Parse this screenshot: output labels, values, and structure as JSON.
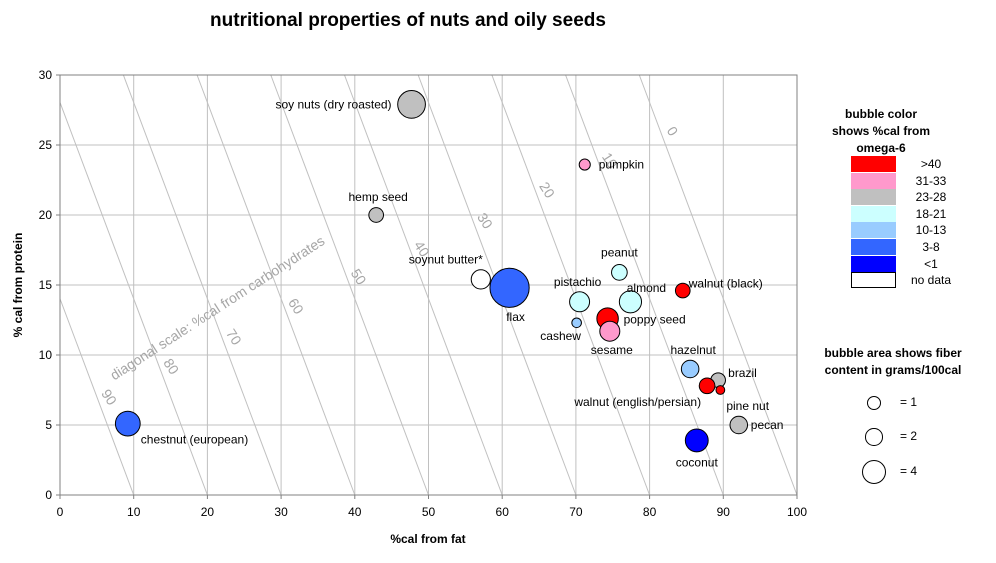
{
  "chart_data": {
    "type": "scatter",
    "title": "nutritional properties of nuts and oily seeds",
    "xlabel": "%cal from fat",
    "ylabel": "% cal from protein",
    "xlim": [
      0,
      100
    ],
    "ylim": [
      0,
      30
    ],
    "xticks": [
      "0",
      "10",
      "20",
      "30",
      "40",
      "50",
      "60",
      "70",
      "80",
      "90",
      "100"
    ],
    "yticks": [
      "0",
      "5",
      "10",
      "15",
      "20",
      "25",
      "30"
    ],
    "grid": true,
    "diagonal_scale": {
      "label": "diagonal scale: %cal from carbohydrates",
      "values": [
        "0",
        "10",
        "20",
        "30",
        "40",
        "50",
        "60",
        "70",
        "80",
        "90"
      ]
    },
    "points": [
      {
        "name": "soy nuts (dry roasted)",
        "x": 47.7,
        "y": 27.9,
        "fiber": 5.0,
        "color": "#c0c0c0"
      },
      {
        "name": "pumpkin",
        "x": 71.2,
        "y": 23.6,
        "fiber": 0.8,
        "color": "#ff99cc"
      },
      {
        "name": "hemp seed",
        "x": 42.9,
        "y": 20.0,
        "fiber": 1.4,
        "color": "#c0c0c0"
      },
      {
        "name": "soynut butter*",
        "x": 57.1,
        "y": 15.4,
        "fiber": 2.4,
        "color": "#ffffff"
      },
      {
        "name": "flax",
        "x": 61.0,
        "y": 14.8,
        "fiber": 10.0,
        "color": "#3366ff"
      },
      {
        "name": "peanut",
        "x": 75.9,
        "y": 15.9,
        "fiber": 1.6,
        "color": "#ccffff"
      },
      {
        "name": "pistachio",
        "x": 70.5,
        "y": 13.8,
        "fiber": 2.6,
        "color": "#ccffff"
      },
      {
        "name": "almond",
        "x": 77.4,
        "y": 13.8,
        "fiber": 3.2,
        "color": "#ccffff"
      },
      {
        "name": "walnut (black)",
        "x": 84.5,
        "y": 14.6,
        "fiber": 1.4,
        "color": "#ff0000"
      },
      {
        "name": "poppy seed",
        "x": 74.3,
        "y": 12.6,
        "fiber": 3.0,
        "color": "#ff0000"
      },
      {
        "name": "cashew",
        "x": 70.1,
        "y": 12.3,
        "fiber": 0.6,
        "color": "#99ccff"
      },
      {
        "name": "sesame",
        "x": 74.6,
        "y": 11.7,
        "fiber": 2.6,
        "color": "#ff99cc"
      },
      {
        "name": "hazelnut",
        "x": 85.5,
        "y": 9.0,
        "fiber": 2.0,
        "color": "#99ccff"
      },
      {
        "name": "brazil",
        "x": 89.3,
        "y": 8.2,
        "fiber": 1.4,
        "color": "#c0c0c0"
      },
      {
        "name": "walnut (english/persian)",
        "x": 87.8,
        "y": 7.8,
        "fiber": 1.6,
        "color": "#ff0000"
      },
      {
        "name": "pine nut",
        "x": 89.6,
        "y": 7.5,
        "fiber": 0.5,
        "color": "#ff0000"
      },
      {
        "name": "pecan",
        "x": 92.1,
        "y": 5.0,
        "fiber": 2.0,
        "color": "#c0c0c0"
      },
      {
        "name": "coconut",
        "x": 86.4,
        "y": 3.9,
        "fiber": 3.4,
        "color": "#0000ff"
      },
      {
        "name": "chestnut (european)",
        "x": 9.2,
        "y": 5.1,
        "fiber": 4.0,
        "color": "#3366ff"
      }
    ],
    "color_legend": {
      "title": "bubble color shows %cal from omega-6",
      "entries": [
        {
          "label": ">40",
          "color": "#ff0000"
        },
        {
          "label": "31-33",
          "color": "#ff99cc"
        },
        {
          "label": "23-28",
          "color": "#c0c0c0"
        },
        {
          "label": "18-21",
          "color": "#ccffff"
        },
        {
          "label": "10-13",
          "color": "#99ccff"
        },
        {
          "label": "3-8",
          "color": "#3366ff"
        },
        {
          "label": "<1",
          "color": "#0000ff"
        },
        {
          "label": "no data",
          "color": "#ffffff"
        }
      ]
    },
    "size_legend": {
      "title": "bubble area shows fiber content in grams/100cal",
      "entries": [
        {
          "label": "=  1",
          "fiber": 1
        },
        {
          "label": "=  2",
          "fiber": 2
        },
        {
          "label": "=  4",
          "fiber": 4
        }
      ]
    }
  }
}
